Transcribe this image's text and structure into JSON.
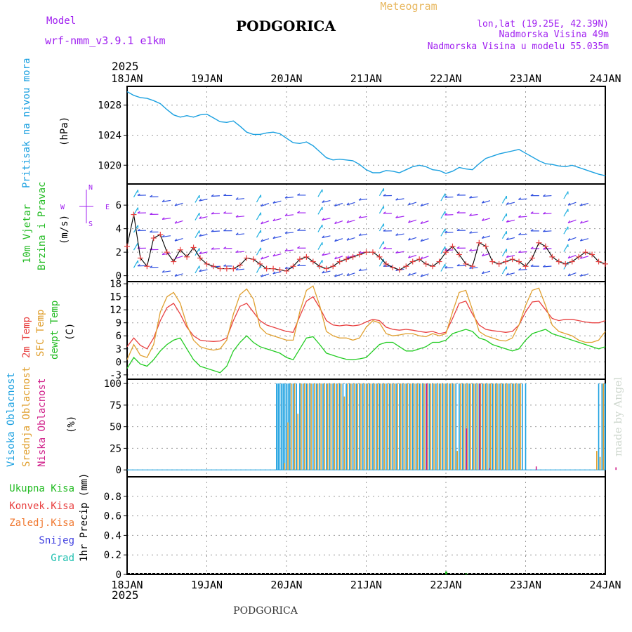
{
  "header": {
    "model_label": "Model",
    "model_name": "wrf-nmm_v3.9.1 e1km",
    "title": "PODGORICA",
    "meteogram": "Meteogram",
    "lonlat": "lon,lat (19.25E, 42.39N)",
    "elevation": "Nadmorska Visina 49m",
    "model_elevation": "Nadmorska Visina u modelu 55.035m",
    "footer_title": "PODGORICA",
    "watermark": "made by Angel",
    "year_top": "2025",
    "year_bottom": "2025"
  },
  "colors": {
    "pressure": "#1aa0e0",
    "wind_label": "#22bb22",
    "wind_dir": "#a020f0",
    "temp2m": "#e84040",
    "sfc": "#e0a030",
    "dewpt": "#22cc22",
    "high_cloud": "#1aa0e0",
    "mid_cloud": "#e0a030",
    "low_cloud": "#d0208a",
    "rain": "#22bb22",
    "conv": "#e84040",
    "freezing": "#f07830",
    "snow": "#4040e0",
    "hail": "#20c0b0"
  },
  "x_axis": [
    "18JAN",
    "19JAN",
    "20JAN",
    "21JAN",
    "22JAN",
    "23JAN",
    "24JAN"
  ],
  "panels": {
    "pressure": {
      "label": "Pritisak na nivou mora",
      "unit": "(hPa)",
      "ticks": [
        "1028",
        "1024",
        "1020"
      ]
    },
    "wind": {
      "label1": "10m Vjetar",
      "label2": "Brzina i Pravac",
      "unit": "(m/s)",
      "ticks": [
        "6",
        "4",
        "2",
        "0"
      ],
      "compass_n": "N",
      "compass_s": "S",
      "compass_w": "W",
      "compass_e": "E"
    },
    "temp": {
      "label1": "2m Temp",
      "label2": "SFC Temp",
      "label3": "dewpt Temp",
      "unit": "(C)",
      "ticks": [
        "18",
        "15",
        "12",
        "9",
        "6",
        "3",
        "0",
        "-3"
      ]
    },
    "cloud": {
      "label1": "Visoka Oblacnost",
      "label2": "Srednja Oblacnost",
      "label3": "Niska Oblacnost",
      "unit": "(%)",
      "ticks": [
        "100",
        "75",
        "50",
        "25",
        "0"
      ]
    },
    "precip": {
      "legend": [
        "Ukupna Kisa",
        "Konvek.Kisa",
        "Zaledj.Kisa",
        "Snijeg",
        "Grad"
      ],
      "unit": "1hr Precip (mm)",
      "ticks": [
        "0.8",
        "0.6",
        "0.4",
        "0.2",
        "0"
      ]
    }
  },
  "chart_data": [
    {
      "type": "line",
      "title": "Pritisak na nivou mora",
      "ylabel": "(hPa)",
      "ylim": [
        1017.5,
        1030.5
      ],
      "x": [
        0,
        1,
        2,
        3,
        4,
        5,
        6,
        7,
        8,
        9,
        10,
        11,
        12,
        13,
        14,
        15,
        16,
        17,
        18,
        19,
        20,
        21,
        22,
        23,
        24,
        25,
        26,
        27,
        28,
        29,
        30,
        31,
        32,
        33,
        34,
        35,
        36,
        37,
        38,
        39,
        40,
        41,
        42,
        43,
        44,
        45,
        46,
        47,
        48,
        49,
        50,
        51,
        52,
        53,
        54,
        55,
        56,
        57,
        58,
        59,
        60,
        61,
        62,
        63,
        64,
        65,
        66,
        67,
        68,
        69,
        70,
        71,
        72
      ],
      "series": [
        {
          "name": "pressure",
          "values": [
            1029.8,
            1029.3,
            1029.0,
            1028.9,
            1028.6,
            1028.2,
            1027.4,
            1026.7,
            1026.4,
            1026.6,
            1026.4,
            1026.7,
            1026.8,
            1026.3,
            1025.8,
            1025.7,
            1025.9,
            1025.2,
            1024.4,
            1024.1,
            1024.1,
            1024.3,
            1024.4,
            1024.2,
            1023.6,
            1023.0,
            1022.9,
            1023.1,
            1022.6,
            1021.8,
            1021.0,
            1020.7,
            1020.8,
            1020.7,
            1020.6,
            1020.1,
            1019.4,
            1019.0,
            1019.0,
            1019.3,
            1019.2,
            1019.0,
            1019.4,
            1019.8,
            1020.0,
            1019.8,
            1019.4,
            1019.3,
            1018.9,
            1019.2,
            1019.7,
            1019.5,
            1019.4,
            1020.2,
            1020.9,
            1021.2,
            1021.5,
            1021.7,
            1021.9,
            1022.1,
            1021.6,
            1021.1,
            1020.6,
            1020.2,
            1020.1,
            1019.9,
            1019.8,
            1020.0,
            1019.7,
            1019.4,
            1019.1,
            1018.8,
            1018.6
          ]
        }
      ]
    },
    {
      "type": "line",
      "title": "10m Vjetar Brzina i Pravac",
      "ylabel": "(m/s)",
      "ylim": [
        -0.5,
        7.8
      ],
      "x": [
        0,
        1,
        2,
        3,
        4,
        5,
        6,
        7,
        8,
        9,
        10,
        11,
        12,
        13,
        14,
        15,
        16,
        17,
        18,
        19,
        20,
        21,
        22,
        23,
        24,
        25,
        26,
        27,
        28,
        29,
        30,
        31,
        32,
        33,
        34,
        35,
        36,
        37,
        38,
        39,
        40,
        41,
        42,
        43,
        44,
        45,
        46,
        47,
        48,
        49,
        50,
        51,
        52,
        53,
        54,
        55,
        56,
        57,
        58,
        59,
        60,
        61,
        62,
        63,
        64,
        65,
        66,
        67,
        68,
        69,
        70,
        71,
        72
      ],
      "series": [
        {
          "name": "wind speed",
          "values": [
            2.5,
            5.2,
            1.5,
            0.8,
            3.2,
            3.5,
            2.0,
            1.2,
            2.2,
            1.6,
            2.4,
            1.5,
            1.0,
            0.8,
            0.6,
            0.6,
            0.6,
            0.9,
            1.5,
            1.4,
            1.0,
            0.6,
            0.6,
            0.5,
            0.4,
            0.8,
            1.4,
            1.6,
            1.2,
            0.8,
            0.6,
            0.8,
            1.2,
            1.4,
            1.6,
            1.8,
            2.0,
            2.0,
            1.6,
            1.0,
            0.7,
            0.5,
            0.8,
            1.2,
            1.4,
            1.0,
            0.8,
            1.2,
            2.0,
            2.5,
            1.8,
            1.0,
            0.8,
            2.8,
            2.5,
            1.2,
            1.0,
            1.2,
            1.4,
            1.2,
            0.8,
            1.5,
            2.8,
            2.5,
            1.6,
            1.2,
            1.0,
            1.2,
            1.6,
            2.0,
            1.8,
            1.2,
            1.0
          ]
        }
      ]
    },
    {
      "type": "line",
      "title": "2m Temp / SFC Temp / dewpt Temp",
      "ylabel": "(C)",
      "ylim": [
        -4,
        18.5
      ],
      "x": [
        0,
        1,
        2,
        3,
        4,
        5,
        6,
        7,
        8,
        9,
        10,
        11,
        12,
        13,
        14,
        15,
        16,
        17,
        18,
        19,
        20,
        21,
        22,
        23,
        24,
        25,
        26,
        27,
        28,
        29,
        30,
        31,
        32,
        33,
        34,
        35,
        36,
        37,
        38,
        39,
        40,
        41,
        42,
        43,
        44,
        45,
        46,
        47,
        48,
        49,
        50,
        51,
        52,
        53,
        54,
        55,
        56,
        57,
        58,
        59,
        60,
        61,
        62,
        63,
        64,
        65,
        66,
        67,
        68,
        69,
        70,
        71,
        72
      ],
      "series": [
        {
          "name": "2m Temp",
          "values": [
            3.5,
            5.5,
            3.8,
            3.0,
            5.5,
            9.5,
            12.5,
            13.5,
            11.0,
            8.0,
            6.0,
            5.0,
            4.8,
            4.7,
            4.8,
            5.5,
            9.5,
            12.8,
            13.5,
            11.5,
            9.5,
            8.5,
            8.0,
            7.5,
            7.0,
            6.8,
            10.5,
            14.0,
            15.0,
            12.5,
            9.5,
            8.5,
            8.3,
            8.5,
            8.3,
            8.5,
            9.2,
            9.8,
            9.5,
            8.0,
            7.5,
            7.3,
            7.5,
            7.3,
            7.0,
            6.8,
            7.0,
            6.5,
            6.8,
            10.0,
            13.5,
            14.0,
            11.0,
            8.5,
            7.5,
            7.2,
            7.0,
            6.8,
            7.0,
            8.5,
            11.5,
            13.8,
            14.0,
            12.0,
            10.0,
            9.5,
            9.8,
            9.8,
            9.5,
            9.2,
            9.0,
            9.0,
            9.5
          ]
        },
        {
          "name": "SFC Temp",
          "values": [
            0.5,
            4.0,
            1.5,
            1.0,
            4.0,
            11.5,
            15.0,
            16.0,
            13.5,
            8.5,
            5.0,
            3.5,
            3.0,
            2.7,
            3.0,
            5.0,
            11.0,
            15.5,
            16.8,
            14.5,
            8.0,
            6.5,
            6.0,
            5.5,
            5.0,
            5.0,
            11.5,
            16.5,
            17.5,
            13.0,
            7.0,
            6.0,
            5.5,
            5.5,
            5.0,
            5.5,
            8.0,
            9.5,
            9.0,
            6.5,
            6.0,
            6.2,
            6.5,
            6.5,
            6.0,
            5.8,
            6.5,
            6.0,
            6.5,
            11.5,
            16.0,
            16.5,
            12.0,
            7.0,
            6.0,
            5.5,
            5.0,
            4.8,
            5.5,
            8.5,
            13.0,
            16.5,
            17.0,
            13.0,
            8.5,
            7.0,
            6.5,
            6.0,
            5.0,
            4.5,
            4.5,
            5.0,
            7.0
          ]
        },
        {
          "name": "dewpt Temp",
          "values": [
            -1.5,
            1.0,
            -0.5,
            -1.0,
            0.5,
            2.5,
            4.0,
            5.0,
            5.5,
            3.0,
            0.5,
            -1.0,
            -1.5,
            -2.0,
            -2.5,
            -1.0,
            2.5,
            4.5,
            6.0,
            4.5,
            3.5,
            3.0,
            2.5,
            2.0,
            1.0,
            0.5,
            3.0,
            5.5,
            5.8,
            4.0,
            2.0,
            1.5,
            1.0,
            0.6,
            0.5,
            0.7,
            1.0,
            2.5,
            4.0,
            4.5,
            4.5,
            3.5,
            2.5,
            2.5,
            3.0,
            3.5,
            4.5,
            4.5,
            5.0,
            6.5,
            7.0,
            7.5,
            7.0,
            5.5,
            5.0,
            4.0,
            3.5,
            3.0,
            2.5,
            3.0,
            5.0,
            6.5,
            7.0,
            7.5,
            6.5,
            6.0,
            5.5,
            5.0,
            4.5,
            4.0,
            3.5,
            3.0,
            3.5
          ]
        }
      ]
    },
    {
      "type": "bar",
      "title": "Oblacnost",
      "ylabel": "(%)",
      "ylim": [
        0,
        100
      ],
      "x_range": [
        0,
        144
      ],
      "series": [
        {
          "name": "Visoka Oblacnost",
          "hours": [
            45,
            45.5,
            46,
            46.5,
            47,
            47.5,
            48,
            48.5,
            49,
            50,
            51,
            52,
            53,
            54,
            55,
            56,
            57,
            58,
            59,
            60,
            61,
            62,
            63,
            64,
            65,
            66,
            67,
            68,
            69,
            70,
            71,
            72,
            73,
            74,
            75,
            76,
            77,
            78,
            79,
            80,
            81,
            82,
            83,
            84,
            85,
            86,
            87,
            88,
            89,
            90,
            91,
            92,
            93,
            94,
            95,
            96,
            97,
            98,
            99,
            100,
            101,
            102,
            103,
            104,
            105,
            106,
            107,
            108,
            109,
            110,
            111,
            112,
            113,
            114,
            115,
            116,
            117,
            118,
            119,
            120,
            142,
            143,
            143.5,
            144
          ],
          "values": [
            100,
            100,
            100,
            100,
            100,
            100,
            100,
            100,
            100,
            100,
            100,
            100,
            100,
            100,
            100,
            100,
            100,
            100,
            100,
            100,
            100,
            100,
            100,
            100,
            100,
            100,
            100,
            100,
            100,
            100,
            100,
            100,
            100,
            100,
            100,
            100,
            100,
            100,
            100,
            100,
            100,
            100,
            100,
            100,
            100,
            100,
            100,
            100,
            100,
            100,
            100,
            100,
            100,
            100,
            100,
            100,
            100,
            100,
            100,
            100,
            100,
            100,
            100,
            100,
            100,
            100,
            100,
            100,
            100,
            100,
            100,
            100,
            100,
            100,
            100,
            100,
            100,
            100,
            100,
            100,
            100,
            100,
            100,
            100
          ]
        },
        {
          "name": "Srednja Oblacnost",
          "hours": [
            47,
            48,
            49,
            50,
            51,
            52,
            53,
            54,
            55,
            56,
            57,
            58,
            59,
            60,
            61,
            62,
            63,
            64,
            65,
            66,
            67,
            68,
            69,
            70,
            71,
            72,
            73,
            74,
            75,
            76,
            77,
            78,
            79,
            80,
            81,
            82,
            83,
            84,
            85,
            86,
            87,
            88,
            89,
            90,
            91,
            92,
            93,
            94,
            95,
            96,
            97,
            98,
            99,
            100,
            101,
            102,
            103,
            104,
            105,
            106,
            107,
            108,
            109,
            110,
            111,
            112,
            113,
            114,
            115,
            116,
            117,
            118,
            141,
            142,
            143
          ],
          "values": [
            8,
            55,
            100,
            100,
            65,
            100,
            100,
            100,
            100,
            100,
            100,
            100,
            100,
            100,
            100,
            100,
            100,
            100,
            85,
            100,
            100,
            100,
            100,
            100,
            100,
            100,
            100,
            100,
            100,
            100,
            100,
            100,
            100,
            100,
            100,
            100,
            100,
            100,
            100,
            100,
            100,
            100,
            100,
            100,
            100,
            100,
            100,
            100,
            100,
            100,
            100,
            100,
            22,
            100,
            100,
            100,
            100,
            100,
            100,
            100,
            100,
            100,
            100,
            100,
            100,
            100,
            100,
            100,
            100,
            100,
            100,
            100,
            22,
            15,
            100
          ]
        },
        {
          "name": "Niska Oblacnost",
          "hours": [
            90,
            102,
            106,
            109,
            123,
            147
          ],
          "values": [
            100,
            48,
            100,
            2,
            4,
            3
          ]
        }
      ]
    },
    {
      "type": "bar",
      "title": "1hr Precip",
      "ylabel": "1hr Precip (mm)",
      "ylim": [
        0,
        1.0
      ],
      "x_range": [
        0,
        144
      ],
      "series": [
        {
          "name": "Ukupna Kisa",
          "hours": [
            96,
            102
          ],
          "values": [
            0.03,
            0.01
          ]
        }
      ]
    }
  ]
}
